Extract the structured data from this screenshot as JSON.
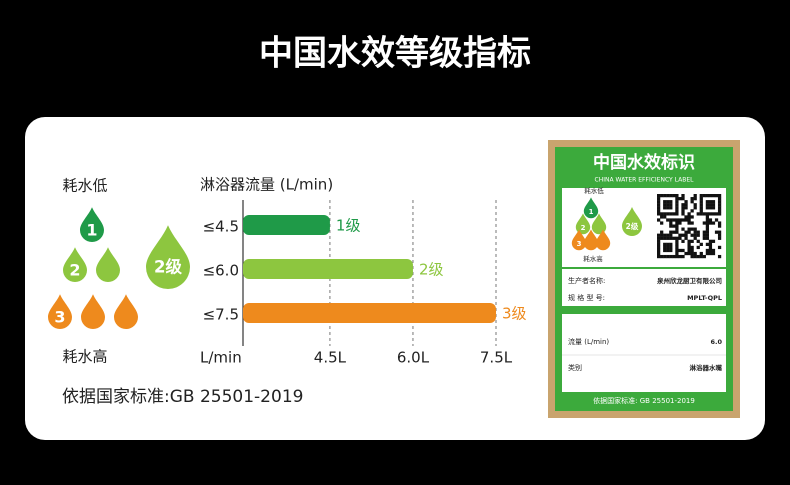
{
  "title": "中国水效等级指标",
  "legend": {
    "low": "耗水低",
    "high": "耗水高",
    "grades": [
      "1",
      "2",
      "3"
    ],
    "badge": "2级"
  },
  "standard": "依据国家标准:GB 25501-2019",
  "chart_data": {
    "type": "bar",
    "orientation": "horizontal",
    "title": "淋浴器流量 (L/min)",
    "x_label": "L/min",
    "categories": [
      "≤4.5",
      "≤6.0",
      "≤7.5"
    ],
    "values": [
      4.5,
      6.0,
      7.5
    ],
    "value_labels": [
      "1级",
      "2级",
      "3级"
    ],
    "colors": [
      "#1f9a48",
      "#8dc63f",
      "#ee8a1d"
    ],
    "xlim": [
      2.93,
      7.5
    ],
    "xticks": [
      {
        "value": 4.5,
        "label": "4.5L"
      },
      {
        "value": 6.0,
        "label": "6.0L"
      },
      {
        "value": 7.5,
        "label": "7.5L"
      }
    ],
    "grid": true
  },
  "label": {
    "title": "中国水效标识",
    "subtitle": "CHINA WATER EFFICIENCY LABEL",
    "low": "耗水低",
    "high": "耗水高",
    "grades": [
      "1",
      "2",
      "3"
    ],
    "badge": "2级",
    "fields": [
      {
        "name": "生产者名称:",
        "value": "泉州欣龙厨卫有限公司"
      },
      {
        "name": "规 格 型 号:",
        "value": "MPLT-QPL"
      }
    ],
    "specs": [
      {
        "name": "流量 (L/min)",
        "value": "6.0"
      },
      {
        "name": "类别",
        "value": "淋浴器水嘴"
      }
    ],
    "footer": "依据国家标准: GB 25501-2019"
  }
}
